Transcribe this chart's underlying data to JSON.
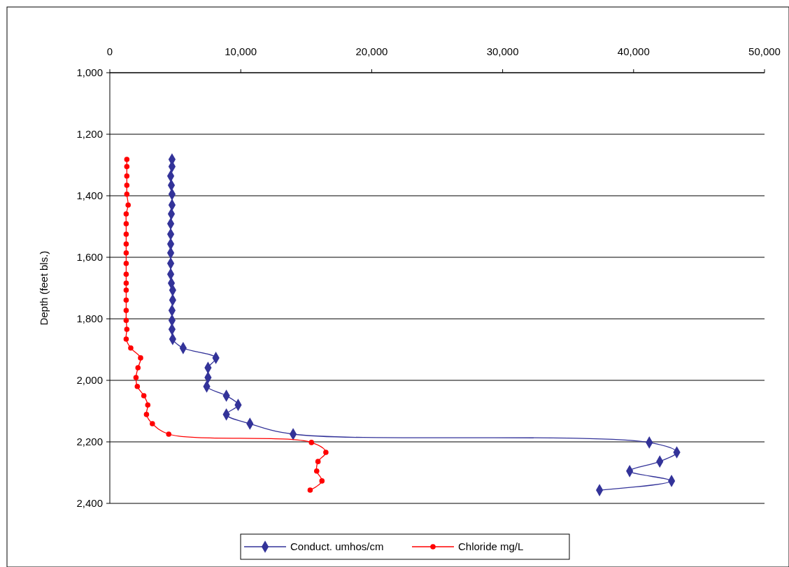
{
  "chart_data": {
    "type": "line",
    "ylabel": "Depth (feet bls.)",
    "xlim": [
      0,
      50000
    ],
    "xticks": [
      {
        "value": 0,
        "label": "0"
      },
      {
        "value": 10000,
        "label": "10,000"
      },
      {
        "value": 20000,
        "label": "20,000"
      },
      {
        "value": 30000,
        "label": "30,000"
      },
      {
        "value": 40000,
        "label": "40,000"
      },
      {
        "value": 50000,
        "label": "50,000"
      }
    ],
    "ylim": [
      2400,
      1000
    ],
    "yticks": [
      {
        "value": 1000,
        "label": "1,000"
      },
      {
        "value": 1200,
        "label": "1,200"
      },
      {
        "value": 1400,
        "label": "1,400"
      },
      {
        "value": 1600,
        "label": "1,600"
      },
      {
        "value": 1800,
        "label": "1,800"
      },
      {
        "value": 2000,
        "label": "2,000"
      },
      {
        "value": 2200,
        "label": "2,200"
      },
      {
        "value": 2400,
        "label": "2,400"
      }
    ],
    "grid": "y",
    "legend": "bottom",
    "series": [
      {
        "name": "Conduct. umhos/cm",
        "color": "#333399",
        "marker": "diamond",
        "x": [
          4750,
          4750,
          4650,
          4700,
          4750,
          4750,
          4700,
          4650,
          4650,
          4650,
          4650,
          4650,
          4650,
          4700,
          4800,
          4800,
          4750,
          4750,
          4750,
          4800,
          5600,
          8100,
          7500,
          7500,
          7400,
          8900,
          9800,
          8900,
          10700,
          14000,
          41200,
          43300,
          42000,
          39700,
          42900,
          37400
        ],
        "values": [
          1282,
          1305,
          1336,
          1366,
          1395,
          1430,
          1459,
          1491,
          1525,
          1557,
          1586,
          1620,
          1655,
          1684,
          1707,
          1739,
          1773,
          1805,
          1834,
          1866,
          1895,
          1927,
          1959,
          1991,
          2020,
          2050,
          2080,
          2111,
          2141,
          2175,
          2202,
          2234,
          2264,
          2295,
          2327,
          2357
        ]
      },
      {
        "name": "Chloride mg/L",
        "color": "#ff0000",
        "marker": "circle",
        "x": [
          1300,
          1300,
          1300,
          1300,
          1300,
          1400,
          1250,
          1250,
          1250,
          1250,
          1250,
          1250,
          1250,
          1250,
          1250,
          1250,
          1250,
          1250,
          1300,
          1250,
          1600,
          2350,
          2150,
          2000,
          2100,
          2600,
          2900,
          2800,
          3250,
          4500,
          15400,
          16500,
          15900,
          15800,
          16200,
          15300
        ],
        "values": [
          1282,
          1305,
          1336,
          1366,
          1395,
          1430,
          1459,
          1491,
          1525,
          1557,
          1586,
          1620,
          1655,
          1684,
          1707,
          1739,
          1773,
          1805,
          1834,
          1866,
          1895,
          1927,
          1959,
          1991,
          2020,
          2050,
          2080,
          2111,
          2141,
          2175,
          2202,
          2234,
          2264,
          2295,
          2327,
          2357
        ]
      }
    ]
  }
}
